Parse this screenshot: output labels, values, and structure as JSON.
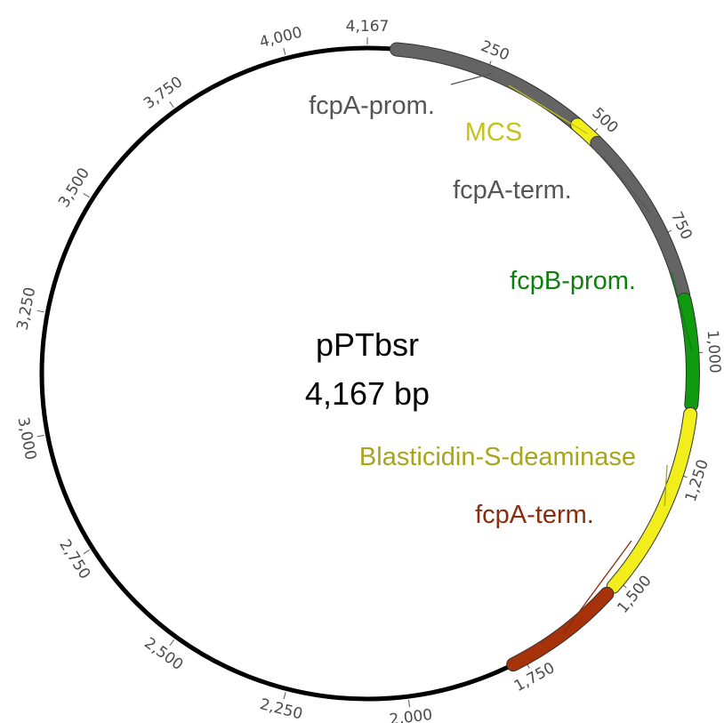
{
  "plasmid": {
    "name": "pPTbsr",
    "length_label": "4,167 bp",
    "length_bp": 4167
  },
  "ticks": [
    {
      "bp": 250,
      "label": "250"
    },
    {
      "bp": 500,
      "label": "500"
    },
    {
      "bp": 750,
      "label": "750"
    },
    {
      "bp": 1000,
      "label": "1,000"
    },
    {
      "bp": 1250,
      "label": "1,250"
    },
    {
      "bp": 1500,
      "label": "1,500"
    },
    {
      "bp": 1750,
      "label": "1,750"
    },
    {
      "bp": 2000,
      "label": "2,000"
    },
    {
      "bp": 2250,
      "label": "2,250"
    },
    {
      "bp": 2500,
      "label": "2,500"
    },
    {
      "bp": 2750,
      "label": "2,750"
    },
    {
      "bp": 3000,
      "label": "3,000"
    },
    {
      "bp": 3250,
      "label": "3,250"
    },
    {
      "bp": 3500,
      "label": "3,500"
    },
    {
      "bp": 3750,
      "label": "3,750"
    },
    {
      "bp": 4000,
      "label": "4,000"
    },
    {
      "bp": 4167,
      "label": "4,167"
    }
  ],
  "features": [
    {
      "name": "fcpA-prom.",
      "start": 60,
      "end": 465,
      "color": "#646464",
      "label_color": "#555555"
    },
    {
      "name": "MCS",
      "start": 465,
      "end": 520,
      "color": "#f2ee1b",
      "label_color": "#c5c11a"
    },
    {
      "name": "fcpA-term.",
      "start": 520,
      "end": 880,
      "color": "#646464",
      "label_color": "#555555"
    },
    {
      "name": "fcpB-prom.",
      "start": 890,
      "end": 1105,
      "color": "#0f9a0f",
      "label_color": "#0f7f0f"
    },
    {
      "name": "Blasticidin-S-deaminase",
      "start": 1125,
      "end": 1515,
      "color": "#f2ee1b",
      "label_color": "#a8a51a"
    },
    {
      "name": "fcpA-term.",
      "start": 1535,
      "end": 1775,
      "color": "#a63209",
      "label_color": "#8b2c0c"
    }
  ]
}
